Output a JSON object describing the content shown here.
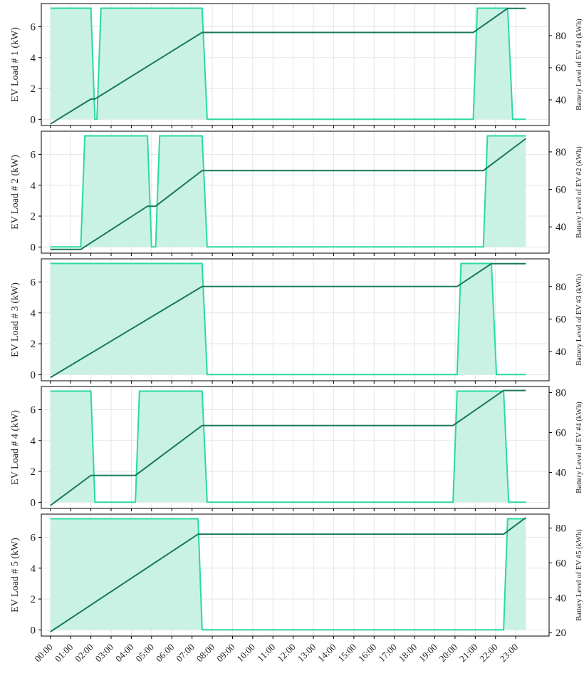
{
  "colors": {
    "load_line": "#2bd9a5",
    "load_fill": "#c9f2e5",
    "battery_line": "#17785c",
    "grid": "#e6e6e6",
    "frame": "#000000"
  },
  "x_tick_labels": [
    "00:00",
    "01:00",
    "02:00",
    "03:00",
    "04:00",
    "05:00",
    "06:00",
    "07:00",
    "08:00",
    "09:00",
    "10:00",
    "11:00",
    "12:00",
    "13:00",
    "14:00",
    "15:00",
    "16:00",
    "17:00",
    "18:00",
    "19:00",
    "20:00",
    "21:00",
    "22:00",
    "23:00"
  ],
  "chart_data": [
    {
      "type": "area",
      "ylabel": "EV Load # 1 (kW)",
      "y2label": "Battery Level of EV #1 (kWh)",
      "ylim": [
        -0.4,
        7.5
      ],
      "yticks": [
        0,
        2,
        4,
        6
      ],
      "y2lim": [
        24,
        100
      ],
      "y2ticks": [
        40,
        60,
        80
      ],
      "grid": true,
      "series": [
        {
          "axis": "left",
          "x": [
            0,
            2,
            2.2,
            2.3,
            2.5,
            7.5,
            7.75,
            20.9,
            21.1,
            22.6,
            22.85,
            23.5
          ],
          "values": [
            7.2,
            7.2,
            0,
            0,
            7.2,
            7.2,
            0,
            0,
            7.2,
            7.2,
            0,
            0
          ]
        },
        {
          "axis": "right",
          "x": [
            0,
            2,
            2.2,
            7.5,
            20.9,
            22.6,
            23.5
          ],
          "values": [
            25,
            40.5,
            40.5,
            82,
            82,
            97,
            97
          ]
        }
      ]
    },
    {
      "type": "area",
      "ylabel": "EV Load # 2 (kW)",
      "y2label": "Battery Level of EV #2 (kWh)",
      "ylim": [
        -0.4,
        7.5
      ],
      "yticks": [
        0,
        2,
        4,
        6
      ],
      "y2lim": [
        26,
        91
      ],
      "y2ticks": [
        40,
        60,
        80
      ],
      "grid": true,
      "series": [
        {
          "axis": "left",
          "x": [
            0,
            1.5,
            1.7,
            4.8,
            5.0,
            5.2,
            5.4,
            7.5,
            7.75,
            21.4,
            21.6,
            23.5
          ],
          "values": [
            0,
            0,
            7.2,
            7.2,
            0,
            0,
            7.2,
            7.2,
            0,
            0,
            7.2,
            7.2
          ]
        },
        {
          "axis": "right",
          "x": [
            0,
            1.5,
            4.8,
            5.2,
            7.5,
            21.4,
            23.5
          ],
          "values": [
            28,
            28,
            51,
            51,
            70,
            70,
            87
          ]
        }
      ]
    },
    {
      "type": "area",
      "ylabel": "EV Load # 3 (kW)",
      "y2label": "Battery Level of EV #3 (kWh)",
      "ylim": [
        -0.4,
        7.5
      ],
      "yticks": [
        0,
        2,
        4,
        6
      ],
      "y2lim": [
        22,
        97
      ],
      "y2ticks": [
        40,
        60,
        80
      ],
      "grid": true,
      "series": [
        {
          "axis": "left",
          "x": [
            0,
            7.5,
            7.75,
            20.1,
            20.3,
            21.8,
            22.05,
            23.5
          ],
          "values": [
            7.2,
            7.2,
            0,
            0,
            7.2,
            7.2,
            0,
            0
          ]
        },
        {
          "axis": "right",
          "x": [
            0,
            7.5,
            20.1,
            21.8,
            23.5
          ],
          "values": [
            24,
            80,
            80,
            94,
            94
          ]
        }
      ]
    },
    {
      "type": "area",
      "ylabel": "EV Load # 4 (kW)",
      "y2label": "Battery Level of EV #4 (kWh)",
      "ylim": [
        -0.4,
        7.5
      ],
      "yticks": [
        0,
        2,
        4,
        6
      ],
      "y2lim": [
        22,
        83
      ],
      "y2ticks": [
        40,
        60,
        80
      ],
      "grid": true,
      "series": [
        {
          "axis": "left",
          "x": [
            0,
            2,
            2.2,
            4.2,
            4.4,
            7.5,
            7.75,
            19.9,
            20.1,
            22.4,
            22.65,
            23.5
          ],
          "values": [
            7.2,
            7.2,
            0,
            0,
            7.2,
            7.2,
            0,
            0,
            7.2,
            7.2,
            0,
            0
          ]
        },
        {
          "axis": "right",
          "x": [
            0,
            2,
            4.2,
            7.5,
            19.9,
            22.4,
            23.5
          ],
          "values": [
            23.5,
            38.5,
            38.5,
            63.5,
            63.5,
            81,
            81
          ]
        }
      ]
    },
    {
      "type": "area",
      "ylabel": "EV Load # 5 (kW)",
      "y2label": "Battery Level of EV #5 (kWh)",
      "ylim": [
        -0.4,
        7.5
      ],
      "yticks": [
        0,
        2,
        4,
        6
      ],
      "y2lim": [
        18,
        88
      ],
      "y2ticks": [
        20,
        40,
        60,
        80
      ],
      "grid": true,
      "series": [
        {
          "axis": "left",
          "x": [
            0,
            7.3,
            7.5,
            22.4,
            22.6,
            23.5
          ],
          "values": [
            7.2,
            7.2,
            0,
            0,
            7.2,
            7.2
          ]
        },
        {
          "axis": "right",
          "x": [
            0,
            7.3,
            22.4,
            23.5
          ],
          "values": [
            20.5,
            76.5,
            76.5,
            86
          ]
        }
      ]
    }
  ]
}
